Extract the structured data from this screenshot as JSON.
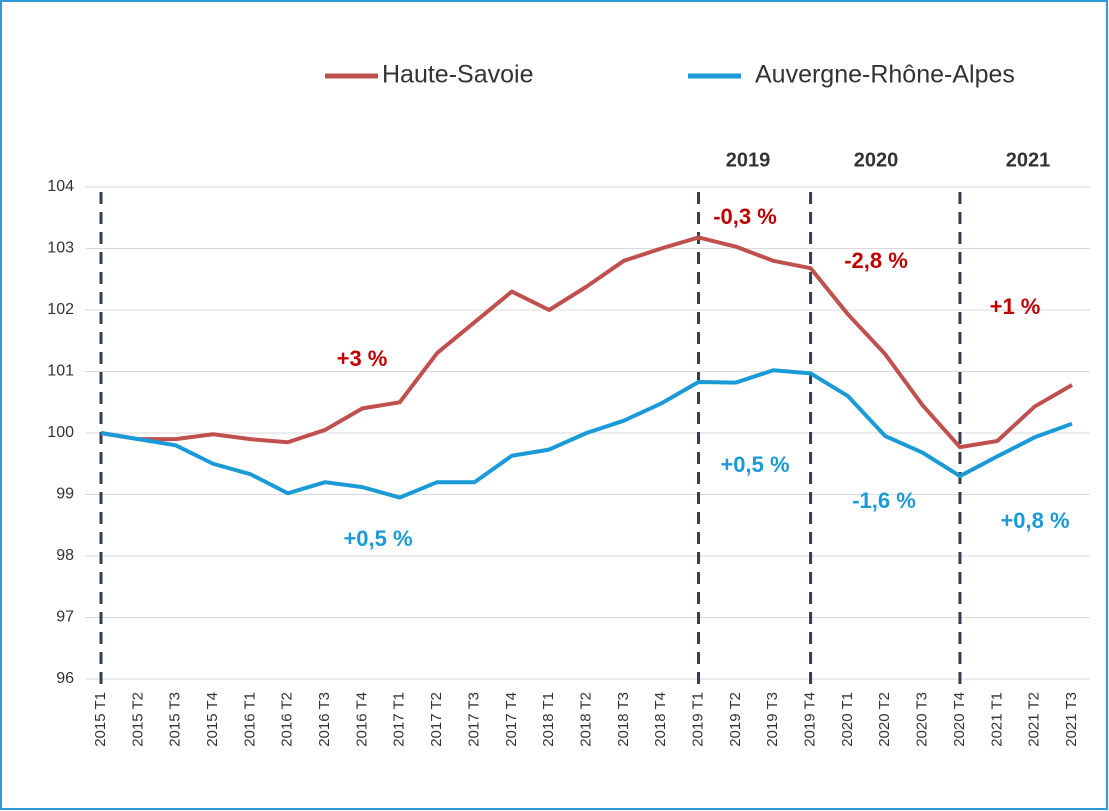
{
  "chart_data": {
    "type": "line",
    "categories": [
      "2015 T1",
      "2015 T2",
      "2015 T3",
      "2015 T4",
      "2016 T1",
      "2016 T2",
      "2016 T3",
      "2016 T4",
      "2017 T1",
      "2017 T2",
      "2017 T3",
      "2017 T4",
      "2018 T1",
      "2018 T2",
      "2018 T3",
      "2018 T4",
      "2019 T1",
      "2019 T2",
      "2019 T3",
      "2019 T4",
      "2020 T1",
      "2020 T2",
      "2020 T3",
      "2020 T4",
      "2021 T1",
      "2021 T2",
      "2021 T3"
    ],
    "series": [
      {
        "name": "Haute-Savoie",
        "color": "#c0504d",
        "values": [
          100,
          99.9,
          99.9,
          99.98,
          99.9,
          99.85,
          100.05,
          100.4,
          100.5,
          101.3,
          101.8,
          102.3,
          102.0,
          102.38,
          102.8,
          103.0,
          103.18,
          103.03,
          102.8,
          102.68,
          101.93,
          101.28,
          100.45,
          99.77,
          99.87,
          100.43,
          100.78
        ]
      },
      {
        "name": "Auvergne-Rhône-Alpes",
        "color": "#1a9ad6",
        "values": [
          100,
          99.9,
          99.8,
          99.5,
          99.33,
          99.02,
          99.2,
          99.12,
          98.95,
          99.2,
          99.2,
          99.63,
          99.73,
          100.0,
          100.2,
          100.48,
          100.83,
          100.82,
          101.02,
          100.97,
          100.6,
          99.95,
          99.68,
          99.3,
          99.62,
          99.93,
          100.15
        ]
      }
    ],
    "ylim": [
      96,
      104
    ],
    "yticks": [
      96,
      97,
      98,
      99,
      100,
      101,
      102,
      103,
      104
    ],
    "grid": true,
    "period_labels": [
      "2019",
      "2020",
      "2021"
    ],
    "annotations": [
      {
        "text": "+3 %",
        "color": "#c00000"
      },
      {
        "text": "+0,5 %",
        "color": "#1a9ad6"
      },
      {
        "text": "-0,3 %",
        "color": "#c00000"
      },
      {
        "text": "+0,5 %",
        "color": "#1a9ad6"
      },
      {
        "text": "-2,8 %",
        "color": "#c00000"
      },
      {
        "text": "-1,6 %",
        "color": "#1a9ad6"
      },
      {
        "text": "+1 %",
        "color": "#c00000"
      },
      {
        "text": "+0,8 %",
        "color": "#1a9ad6"
      }
    ]
  }
}
